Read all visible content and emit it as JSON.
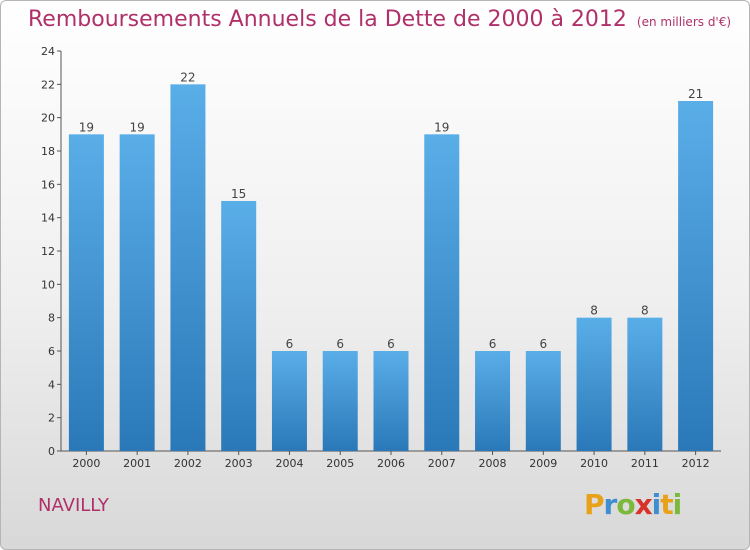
{
  "title": "Remboursements Annuels de la Dette de 2000 à 2012",
  "subtitle": "(en milliers d'€)",
  "commune": "NAVILLY",
  "logo_text": "Proxiti",
  "colors": {
    "title": "#b0306a",
    "bar_top": "#5aaee8",
    "bar_bottom": "#2a78b8"
  },
  "chart_data": {
    "type": "bar",
    "categories": [
      "2000",
      "2001",
      "2002",
      "2003",
      "2004",
      "2005",
      "2006",
      "2007",
      "2008",
      "2009",
      "2010",
      "2011",
      "2012"
    ],
    "values": [
      19,
      19,
      22,
      15,
      6,
      6,
      6,
      19,
      6,
      6,
      8,
      8,
      21
    ],
    "ylim": [
      0,
      24
    ],
    "yticks": [
      0,
      2,
      4,
      6,
      8,
      10,
      12,
      14,
      16,
      18,
      20,
      22,
      24
    ],
    "grid": false,
    "xlabel": "",
    "ylabel": ""
  }
}
